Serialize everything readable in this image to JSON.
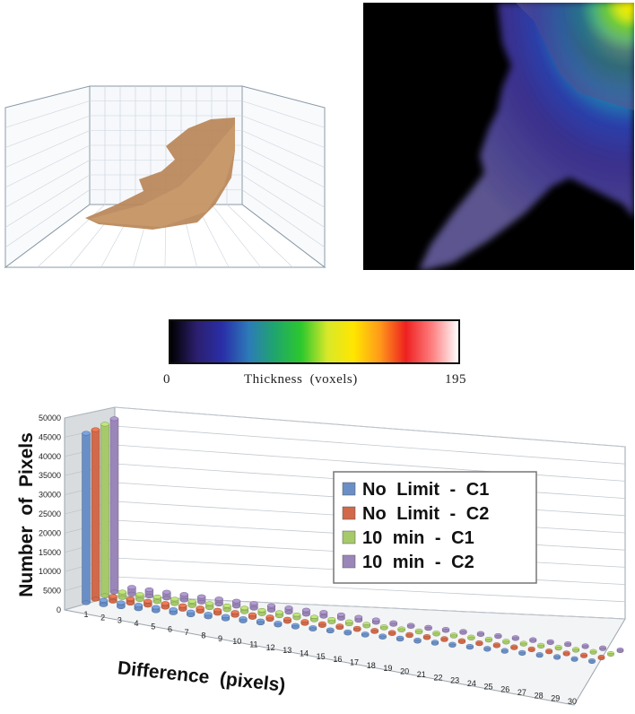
{
  "colorbar": {
    "min_label": "0",
    "max_label": "195",
    "caption": "Thickness (voxels)",
    "stops": [
      "#000000",
      "#2b1f6e",
      "#2a2fa8",
      "#2c7bb8",
      "#1fa66b",
      "#2dc82d",
      "#d8e82a",
      "#ffe600",
      "#ff9a1a",
      "#ee2020",
      "#ff7f7f",
      "#ffffff"
    ]
  },
  "chart_data": {
    "type": "bar",
    "xlabel": "Difference (pixels)",
    "ylabel": "Number of Pixels",
    "ylim": [
      0,
      50000
    ],
    "yticks": [
      "0",
      "5000",
      "10000",
      "15000",
      "20000",
      "25000",
      "30000",
      "35000",
      "40000",
      "45000",
      "50000"
    ],
    "categories": [
      "1",
      "2",
      "3",
      "4",
      "5",
      "6",
      "7",
      "8",
      "9",
      "10",
      "11",
      "12",
      "13",
      "14",
      "15",
      "16",
      "17",
      "18",
      "19",
      "20",
      "21",
      "22",
      "23",
      "24",
      "25",
      "26",
      "27",
      "28",
      "29",
      "30"
    ],
    "legend_position": "right",
    "series": [
      {
        "name": "No Limit - C1",
        "color": "#6a8fc6",
        "values": [
          45000,
          1200,
          1100,
          1000,
          950,
          900,
          850,
          800,
          750,
          700,
          650,
          600,
          550,
          500,
          450,
          400,
          300,
          250,
          200,
          150,
          100,
          80,
          60,
          50,
          40,
          30,
          20,
          15,
          10,
          5
        ]
      },
      {
        "name": "No Limit - C2",
        "color": "#d06a4a",
        "values": [
          45000,
          1300,
          1200,
          1100,
          1050,
          1000,
          950,
          900,
          850,
          800,
          750,
          700,
          650,
          600,
          550,
          450,
          350,
          280,
          220,
          160,
          110,
          80,
          60,
          50,
          40,
          30,
          20,
          15,
          10,
          5
        ]
      },
      {
        "name": "10 min - C1",
        "color": "#a6c96a",
        "values": [
          45500,
          1500,
          1400,
          1300,
          1250,
          1200,
          1150,
          1100,
          1050,
          1000,
          950,
          900,
          850,
          800,
          700,
          600,
          450,
          350,
          260,
          180,
          120,
          90,
          70,
          50,
          40,
          30,
          20,
          15,
          10,
          5
        ]
      },
      {
        "name": "10 min - C2",
        "color": "#9a86b8",
        "values": [
          46000,
          1800,
          1700,
          1600,
          1550,
          1500,
          1450,
          1400,
          1350,
          1300,
          1250,
          1200,
          1150,
          1050,
          950,
          800,
          600,
          450,
          320,
          220,
          150,
          100,
          70,
          50,
          40,
          30,
          20,
          15,
          10,
          5
        ]
      }
    ]
  }
}
